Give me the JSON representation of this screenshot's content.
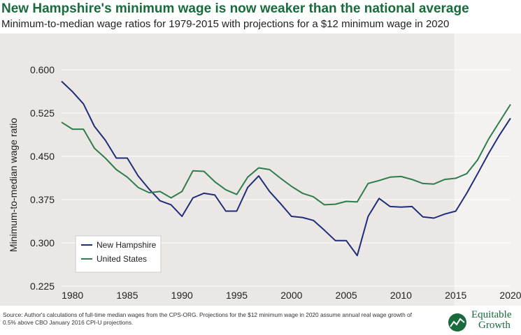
{
  "chart_data": {
    "type": "line",
    "title": "New Hampshire's minimum wage is now weaker than the national average",
    "subtitle": "Minimum-to-median wage ratios for 1979-2015 with projections for a $12 minimum wage in 2020",
    "xlabel": "",
    "ylabel": "Minimum-to-median wage ratio",
    "xlim": [
      1979,
      2020
    ],
    "ylim": [
      0.225,
      0.6
    ],
    "x_ticks": [
      1980,
      1985,
      1990,
      1995,
      2000,
      2005,
      2010,
      2015,
      2020
    ],
    "y_ticks": [
      "0.600",
      "0.525",
      "0.450",
      "0.375",
      "0.300",
      "0.225"
    ],
    "projection_shading": [
      2015,
      2020
    ],
    "x": [
      1979,
      1980,
      1981,
      1982,
      1983,
      1984,
      1985,
      1986,
      1987,
      1988,
      1989,
      1990,
      1991,
      1992,
      1993,
      1994,
      1995,
      1996,
      1997,
      1998,
      1999,
      2000,
      2001,
      2002,
      2003,
      2004,
      2005,
      2006,
      2007,
      2008,
      2009,
      2010,
      2011,
      2012,
      2013,
      2014,
      2015,
      2016,
      2017,
      2018,
      2019,
      2020
    ],
    "series": [
      {
        "name": "New Hampshire",
        "color": "#1f2d7a",
        "values": [
          0.58,
          0.562,
          0.541,
          0.502,
          0.478,
          0.447,
          0.447,
          0.416,
          0.393,
          0.373,
          0.366,
          0.346,
          0.378,
          0.386,
          0.383,
          0.355,
          0.355,
          0.396,
          0.416,
          0.389,
          0.368,
          0.346,
          0.344,
          0.339,
          0.322,
          0.304,
          0.304,
          0.278,
          0.346,
          0.377,
          0.363,
          0.362,
          0.363,
          0.345,
          0.343,
          0.35,
          0.355,
          0.386,
          0.42,
          0.455,
          0.487,
          0.516
        ]
      },
      {
        "name": "United States",
        "color": "#2e7d4f",
        "values": [
          0.509,
          0.497,
          0.497,
          0.464,
          0.447,
          0.427,
          0.414,
          0.396,
          0.387,
          0.389,
          0.378,
          0.389,
          0.425,
          0.424,
          0.406,
          0.392,
          0.384,
          0.414,
          0.43,
          0.427,
          0.412,
          0.398,
          0.386,
          0.38,
          0.366,
          0.367,
          0.372,
          0.371,
          0.403,
          0.408,
          0.414,
          0.415,
          0.41,
          0.403,
          0.402,
          0.41,
          0.412,
          0.42,
          0.444,
          0.48,
          0.51,
          0.54
        ]
      }
    ],
    "legend_position": "bottom-left",
    "grid": "horizontal"
  },
  "footer": {
    "source": "Source: Author's calculations of full-time median wages from the CPS-ORG. Projections for the $12 minimum wage in 2020 assume annual real wage growth of 0.5% above CBO January 2016 CPI-U projections.",
    "logo_line1": "Equitable",
    "logo_line2": "Growth"
  }
}
